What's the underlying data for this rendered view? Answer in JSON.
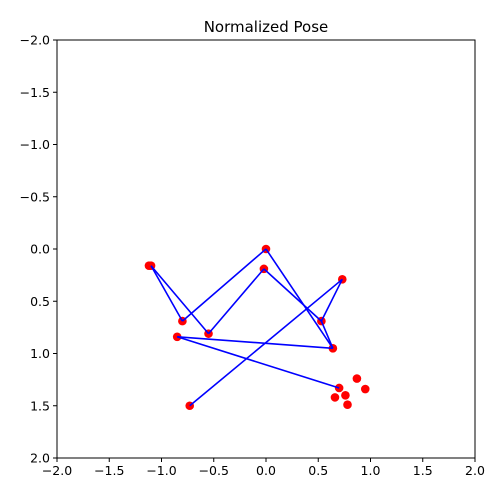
{
  "chart_data": {
    "type": "scatter",
    "title": "Normalized Pose",
    "xlabel": "",
    "ylabel": "",
    "xlim": [
      -2.0,
      2.0
    ],
    "ylim": [
      2.0,
      -2.0
    ],
    "y_inverted": true,
    "grid": false,
    "x_ticks": [
      "−2.0",
      "−1.5",
      "−1.0",
      "−0.5",
      "0.0",
      "0.5",
      "1.0",
      "1.5",
      "2.0"
    ],
    "x_tick_values": [
      -2.0,
      -1.5,
      -1.0,
      -0.5,
      0.0,
      0.5,
      1.0,
      1.5,
      2.0
    ],
    "y_ticks": [
      "−2.0",
      "−1.5",
      "−1.0",
      "−0.5",
      "0.0",
      "0.5",
      "1.0",
      "1.5",
      "2.0"
    ],
    "y_tick_values": [
      -2.0,
      -1.5,
      -1.0,
      -0.5,
      0.0,
      0.5,
      1.0,
      1.5,
      2.0
    ],
    "colors": {
      "points": "#ff0000",
      "lines": "#0000ff"
    },
    "points": [
      {
        "x": 0.0,
        "y": 0.0
      },
      {
        "x": -0.02,
        "y": 0.19
      },
      {
        "x": -0.55,
        "y": 0.81
      },
      {
        "x": -0.8,
        "y": 0.69
      },
      {
        "x": -1.1,
        "y": 0.16
      },
      {
        "x": 0.53,
        "y": 0.69
      },
      {
        "x": 0.73,
        "y": 0.29
      },
      {
        "x": -0.73,
        "y": 1.5
      },
      {
        "x": 0.64,
        "y": 0.95
      },
      {
        "x": -0.85,
        "y": 0.84
      },
      {
        "x": 0.7,
        "y": 1.33
      },
      {
        "x": 0.87,
        "y": 1.24
      },
      {
        "x": 0.95,
        "y": 1.34
      },
      {
        "x": 0.66,
        "y": 1.42
      },
      {
        "x": 0.76,
        "y": 1.4
      },
      {
        "x": 0.78,
        "y": 1.49
      },
      {
        "x": -1.12,
        "y": 0.16
      }
    ],
    "segments": [
      [
        [
          0.0,
          0.0
        ],
        [
          -0.8,
          0.69
        ]
      ],
      [
        [
          0.0,
          0.0
        ],
        [
          0.64,
          0.95
        ]
      ],
      [
        [
          -0.02,
          0.19
        ],
        [
          -0.55,
          0.81
        ]
      ],
      [
        [
          -0.02,
          0.19
        ],
        [
          0.53,
          0.69
        ]
      ],
      [
        [
          -0.8,
          0.69
        ],
        [
          -1.1,
          0.16
        ]
      ],
      [
        [
          -1.1,
          0.16
        ],
        [
          -0.55,
          0.81
        ]
      ],
      [
        [
          0.73,
          0.29
        ],
        [
          0.53,
          0.69
        ]
      ],
      [
        [
          0.73,
          0.29
        ],
        [
          -0.73,
          1.5
        ]
      ],
      [
        [
          0.53,
          0.69
        ],
        [
          0.64,
          0.95
        ]
      ],
      [
        [
          0.64,
          0.95
        ],
        [
          -0.85,
          0.84
        ]
      ],
      [
        [
          -0.85,
          0.84
        ],
        [
          0.7,
          1.33
        ]
      ]
    ]
  }
}
